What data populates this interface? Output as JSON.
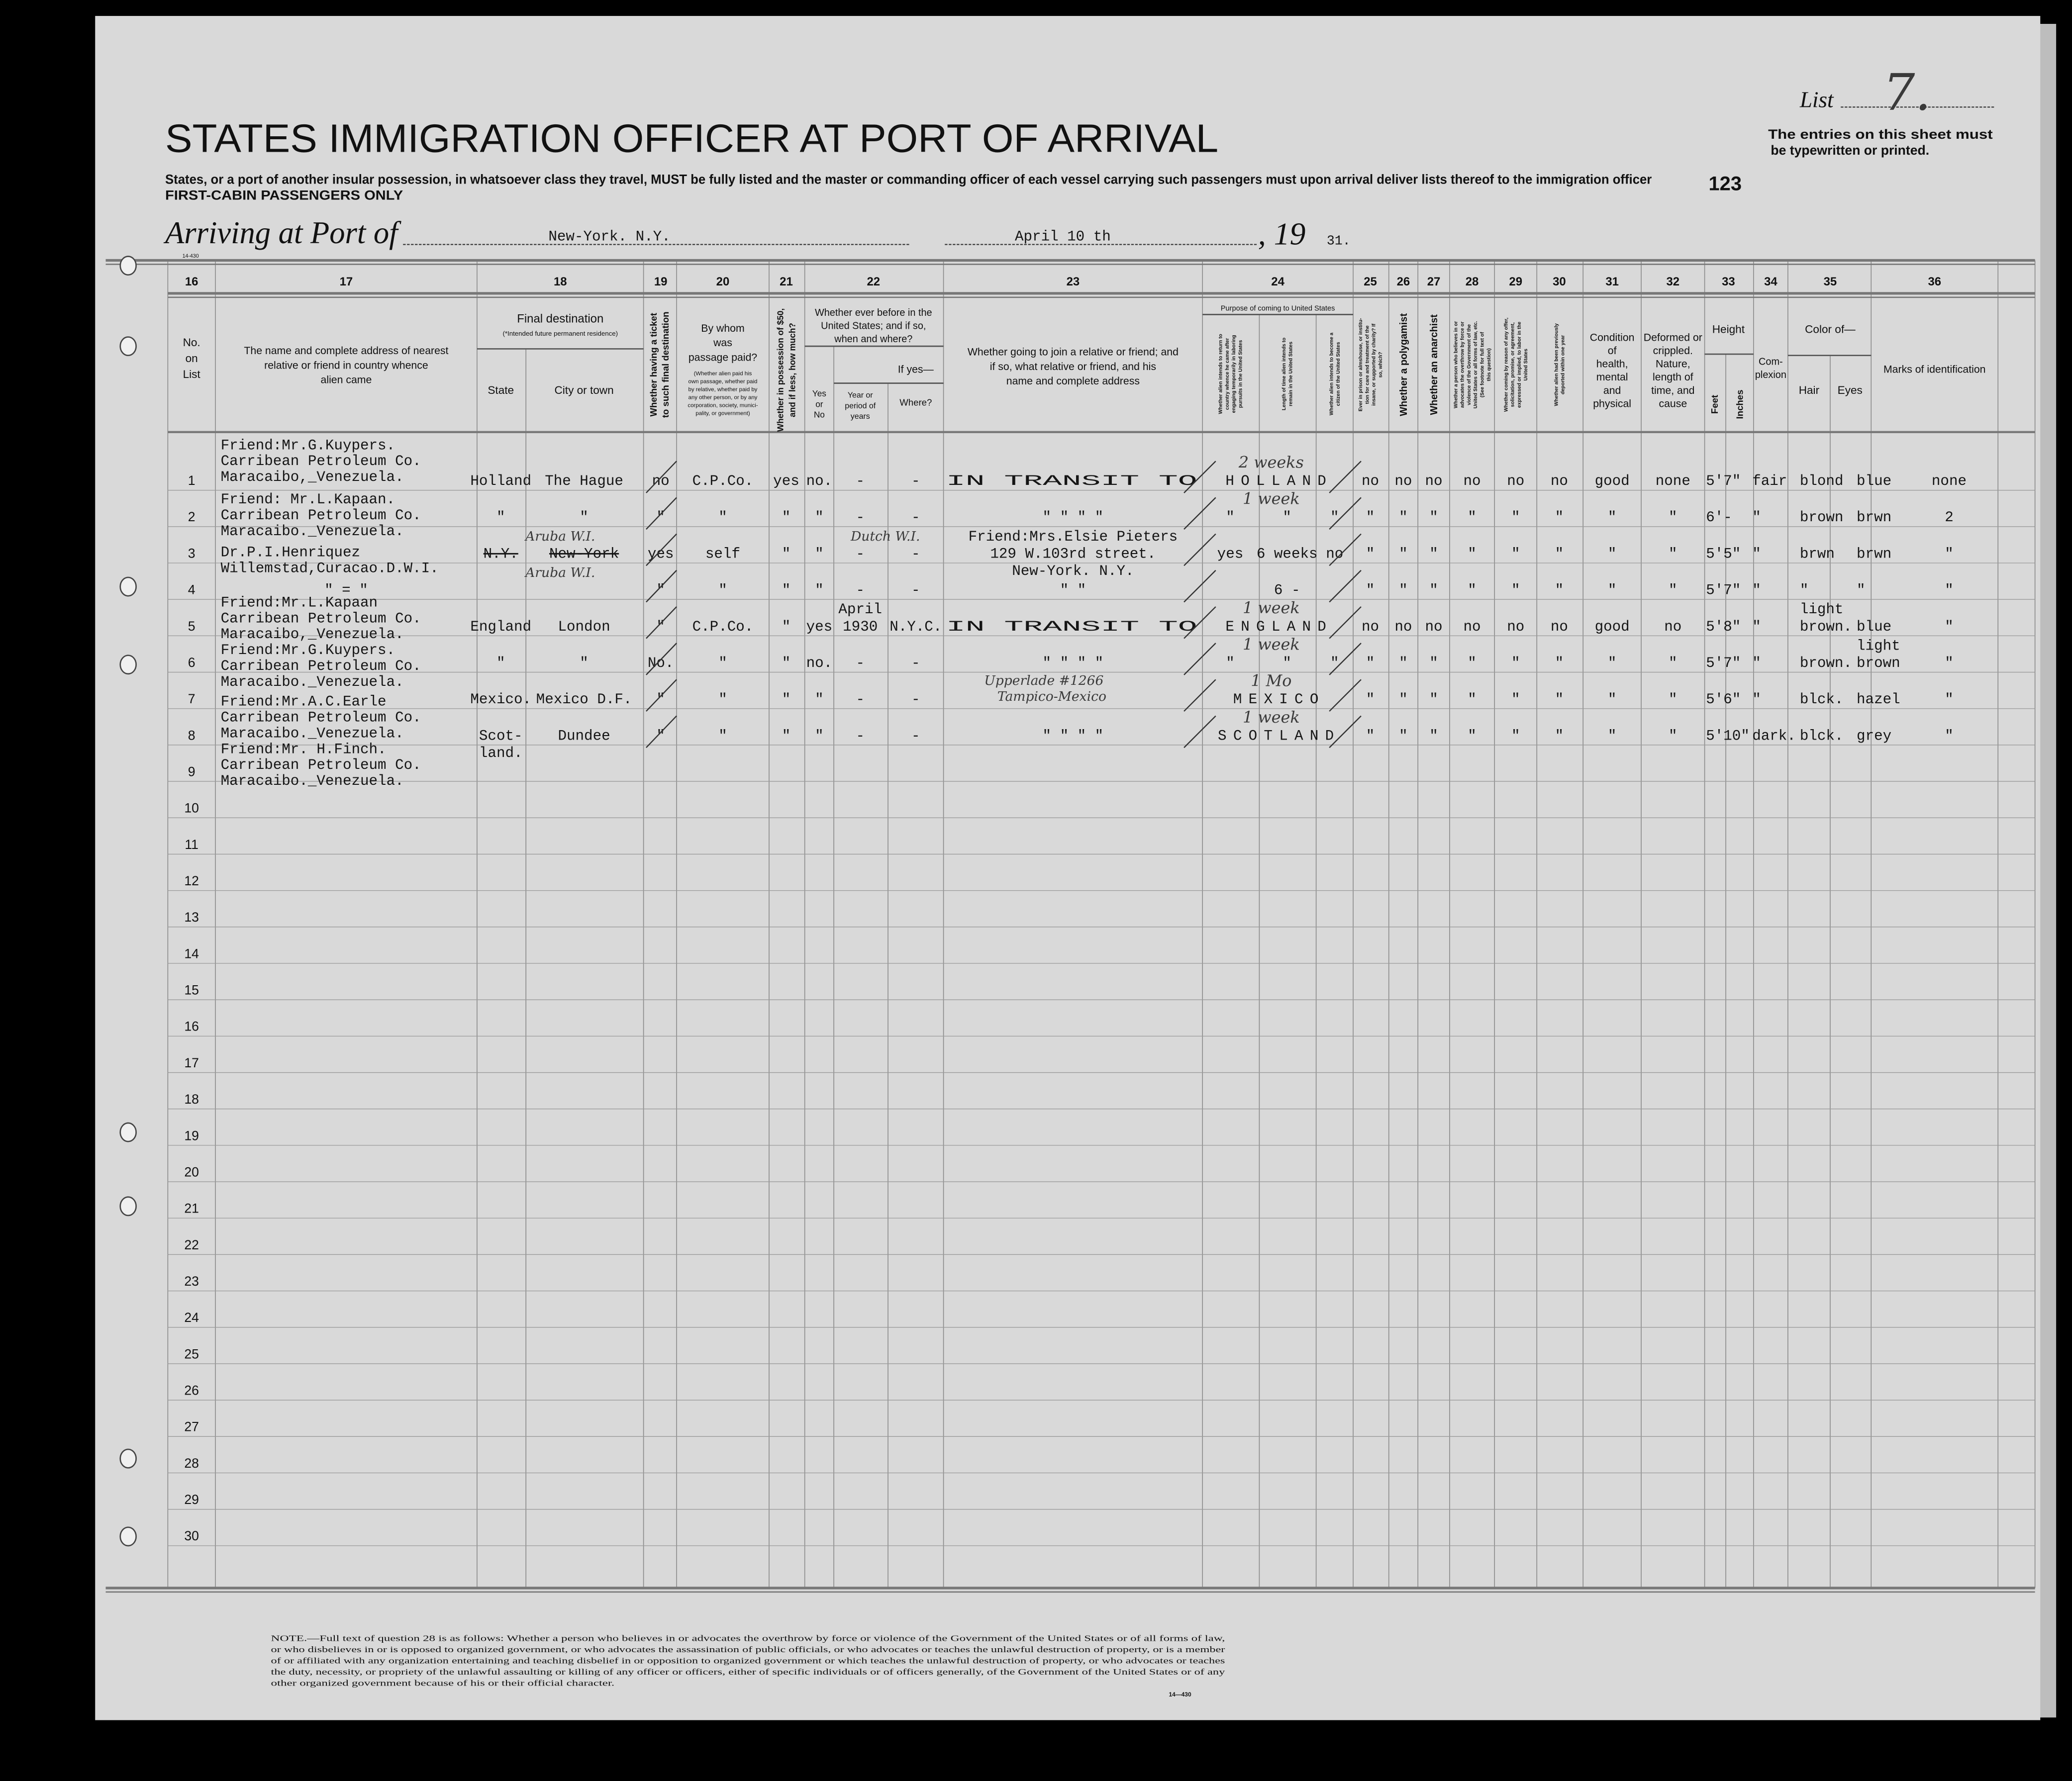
{
  "header": {
    "title": "STATES IMMIGRATION OFFICER AT PORT OF ARRIVAL",
    "instruction": "States, or a port of another insular possession, in whatsoever class they travel, MUST be fully listed and the master or commanding officer of each vessel carrying such passengers must upon arrival deliver lists thereof to the immigration officer",
    "class_label": "FIRST-CABIN PASSENGERS ONLY",
    "list_label": "List",
    "list_number": "7.",
    "entries_note_1": "The entries on this sheet must",
    "entries_note_2": "be typewritten or printed.",
    "sheet_number": "123",
    "arriving_label": "Arriving at Port of",
    "port": "New-York. N.Y.",
    "date": "April 10 th",
    "year_prefix": ", 19",
    "year_suffix": "31.",
    "form_code": "14-430"
  },
  "columns": {
    "numbers": [
      "16",
      "17",
      "18",
      "19",
      "20",
      "21",
      "22",
      "23",
      "24",
      "25",
      "26",
      "27",
      "28",
      "29",
      "30",
      "31",
      "32",
      "33",
      "34",
      "35",
      "36"
    ],
    "c16": [
      "No.",
      "on",
      "List"
    ],
    "c17": [
      "The name and complete address of nearest",
      "relative or friend in country whence",
      "alien came"
    ],
    "c18": {
      "title": "Final destination",
      "subtitle": "(*Intended future permanent residence)",
      "state": "State",
      "city": "City or town"
    },
    "c19": [
      "Whether having a ticket",
      "to such final destination"
    ],
    "c20": {
      "title": [
        "By whom",
        "was",
        "passage paid?"
      ],
      "note": [
        "(Whether alien paid his",
        "own passage, whether paid",
        "by relative, whether paid by",
        "any other person, or by any",
        "corporation, society, munici-",
        "pality, or government)"
      ]
    },
    "c21": [
      "Whether in possession of $50,",
      "and if less, how much?"
    ],
    "c22": {
      "title": [
        "Whether ever before in the",
        "United States; and if so,",
        "when and where?"
      ],
      "if_yes": "If yes—",
      "yes_no": [
        "Yes",
        "or",
        "No"
      ],
      "year": [
        "Year or",
        "period of",
        "years"
      ],
      "where": "Where?"
    },
    "c23": [
      "Whether going to join a relative or friend; and",
      "if so, what relative or friend, and his",
      "name and complete address"
    ],
    "c24": {
      "title": "Purpose of coming to United States",
      "return": [
        "Whether alien intends to return to",
        "country whence he came after",
        "engaging temporarily in laboring",
        "pursuits in the United States"
      ],
      "length": [
        "Length of time alien intends to",
        "remain in the United States"
      ],
      "citizen": [
        "Whether alien intends to become a",
        "citizen of the United States"
      ]
    },
    "c25": [
      "Ever in prison or almshouse, or institu-",
      "tion for care and treatment of the",
      "insane, or supported by charity? If",
      "so, which?"
    ],
    "c26": [
      "Whether a polygamist"
    ],
    "c27": [
      "Whether an anarchist"
    ],
    "c28": [
      "Whether a person who believes in or",
      "advocates the overthrow by force or",
      "violence of the Government of the",
      "United States or all forms of law, etc.",
      "(See footnote for full text of",
      "this question)"
    ],
    "c29": [
      "Whether coming by reason of any offer,",
      "solicitation, promise, or agreement,",
      "expressed or implied, to labor in the",
      "United States"
    ],
    "c30": [
      "Whether alien had been previously",
      "deported within one year"
    ],
    "c31": [
      "Condition",
      "of",
      "health,",
      "mental",
      "and",
      "physical"
    ],
    "c32": [
      "Deformed or",
      "crippled.",
      "Nature,",
      "length of",
      "time, and",
      "cause"
    ],
    "c33": {
      "title": "Height",
      "feet": "Feet",
      "inches": "Inches"
    },
    "c34": [
      "Com-",
      "plexion"
    ],
    "c35": {
      "title": "Color of—",
      "hair": "Hair",
      "eyes": "Eyes"
    },
    "c36": [
      "Marks of identification"
    ]
  },
  "row_numbers": [
    "1",
    "2",
    "3",
    "4",
    "5",
    "6",
    "7",
    "8",
    "9",
    "10",
    "11",
    "12",
    "13",
    "14",
    "15",
    "16",
    "17",
    "18",
    "19",
    "20",
    "21",
    "22",
    "23",
    "24",
    "25",
    "26",
    "27",
    "28",
    "29",
    "30"
  ],
  "addresses": [
    {
      "row": 1,
      "lines": [
        "Friend:Mr.G.Kuypers.",
        "Carribean Petroleum Co.",
        "Maracaibo,_Venezuela."
      ]
    },
    {
      "row": 2,
      "lines": [
        "Friend: Mr.L.Kapaan.",
        "Carribean Petroleum Co.",
        "Maracaibo._Venezuela."
      ]
    },
    {
      "row": 3,
      "lines": [
        "Dr.P.I.Henriquez",
        "Willemstad,Curacao.D.W.I."
      ]
    },
    {
      "row": 5,
      "lines": [
        "Friend:Mr.L.Kapaan",
        "Carribean Petroleum Co.",
        "Maracaibo,_Venezuela."
      ]
    },
    {
      "row": 6,
      "lines": [
        "Friend:Mr.G.Kuypers.",
        "Carribean Petroleum Co.",
        "Maracaibo._Venezuela."
      ]
    },
    {
      "row": 7,
      "lines": [
        "Friend:Mr.A.C.Earle",
        "Carribean Petroleum Co.",
        "Maracaibo._Venezuela."
      ]
    },
    {
      "row": 8,
      "lines": [
        "Friend:Mr. H.Finch.",
        "Carribean Petroleum Co.",
        "Maracaibo._Venezuela."
      ]
    }
  ],
  "rows": [
    {
      "state": "Holland",
      "city": "The Hague",
      "c19": "no",
      "c20": "C.P.Co.",
      "c21": "yes",
      "c22_yn": "no.",
      "c22_year": "-",
      "c22_where": "-",
      "transit": "IN TRANSIT TO",
      "c24_dest": "HOLLAND",
      "hand_c24": "2 weeks",
      "c25": "no",
      "c26": "no",
      "c27": "no",
      "c28": "no",
      "c29": "no",
      "c30": "no",
      "c31": "good",
      "c32": "none",
      "height": "5'7\"",
      "complexion": "fair",
      "hair": "blond",
      "eyes": "blue",
      "marks": "none"
    },
    {
      "state": "\"",
      "city": "\"",
      "c19": "\"",
      "c20": "\"",
      "c21": "\"",
      "c22_yn": "\"",
      "c22_year": "-",
      "c22_where": "-",
      "c23": "\"     \"    \"   \"",
      "hand_c24": "1 week",
      "c24_return": "\"",
      "c24_length": "\"",
      "c24_citizen": "\"",
      "c25": "\"",
      "c26": "\"",
      "c27": "\"",
      "c28": "\"",
      "c29": "\"",
      "c30": "\"",
      "c31": "\"",
      "c32": "\"",
      "height": "6'-",
      "complexion": "\"",
      "hair": "brown",
      "eyes": "brwn",
      "marks": "2"
    },
    {
      "state": "N.Y.",
      "city": "New-York",
      "struck": [
        "state",
        "city"
      ],
      "hand_state": "Aruba W.I.",
      "c19": "yes",
      "c20": "self",
      "c21": "\"",
      "c22_yn": "\"",
      "hand_c22": "Dutch W.I.",
      "c22_year": "-",
      "c22_where": "-",
      "c23": "Friend:Mrs.Elsie Pieters\n129 W.103rd street.\nNew-York. N.Y.",
      "c24_return": "yes",
      "c24_length": "6 weeks",
      "c24_citizen": "no",
      "c25": "\"",
      "c26": "\"",
      "c27": "\"",
      "c28": "\"",
      "c29": "\"",
      "c30": "\"",
      "c31": "\"",
      "c32": "\"",
      "height": "5'5\"",
      "complexion": "\"",
      "hair": "brwn",
      "eyes": "brwn",
      "marks": "\""
    },
    {
      "c17": "\"    =    \"",
      "hand_state": "Aruba W.I.",
      "c19": "\"",
      "c20": "\"",
      "c21": "\"",
      "c22_yn": "\"",
      "c22_year": "-",
      "c22_where": "-",
      "c23": "\"           \"",
      "c24_length": "6 -",
      "c25": "\"",
      "c26": "\"",
      "c27": "\"",
      "c28": "\"",
      "c29": "\"",
      "c30": "\"",
      "c31": "\"",
      "c32": "\"",
      "height": "5'7\"",
      "complexion": "\"",
      "hair": "\"",
      "eyes": "\"",
      "marks": "\""
    },
    {
      "state": "England",
      "city": "London",
      "c19": "\"",
      "c20": "C.P.Co.",
      "c21": "\"",
      "c22_yn": "yes",
      "c22_year": "April\n1930",
      "c22_where": "N.Y.C.",
      "transit": "IN TRANSIT TO",
      "c24_dest": "ENGLAND",
      "hand_c24": "1 week",
      "c25": "no",
      "c26": "no",
      "c27": "no",
      "c28": "no",
      "c29": "no",
      "c30": "no",
      "c31": "good",
      "c32": "no",
      "height": "5'8\"",
      "complexion": "\"",
      "hair": "light\nbrown.",
      "eyes": "blue",
      "marks": "\""
    },
    {
      "state": "\"",
      "city": "\"",
      "c19": "No.",
      "c20": "\"",
      "c21": "\"",
      "c22_yn": "no.",
      "c22_year": "-",
      "c22_where": "-",
      "c23": "\"     \"    \"   \"",
      "hand_c24": "1 week",
      "c24_return": "\"",
      "c24_length": "\"",
      "c24_citizen": "\"",
      "c25": "\"",
      "c26": "\"",
      "c27": "\"",
      "c28": "\"",
      "c29": "\"",
      "c30": "\"",
      "c31": "\"",
      "c32": "\"",
      "height": "5'7\"",
      "complexion": "\"",
      "hair": "brown.",
      "eyes": "light\nbrown",
      "marks": "\""
    },
    {
      "state": "Mexico.",
      "city": "Mexico D.F.",
      "c19": "\"",
      "c20": "\"",
      "c21": "\"",
      "c22_yn": "\"",
      "c22_year": "-",
      "c22_where": "-",
      "hand_c23": "Upperlade #1266\nTampico-Mexico",
      "c24_dest": "MEXICO",
      "hand_c24": "1 Mo",
      "c25": "\"",
      "c26": "\"",
      "c27": "\"",
      "c28": "\"",
      "c29": "\"",
      "c30": "\"",
      "c31": "\"",
      "c32": "\"",
      "height": "5'6\"",
      "complexion": "\"",
      "hair": "blck.",
      "eyes": "hazel",
      "marks": "\""
    },
    {
      "state": "Scot-\nland.",
      "city": "Dundee",
      "c19": "\"",
      "c20": "\"",
      "c21": "\"",
      "c22_yn": "\"",
      "c22_year": "-",
      "c22_where": "-",
      "c23": "\"     \"    \"   \"",
      "c24_dest": "SCOTLAND",
      "hand_c24": "1 week",
      "c25": "\"",
      "c26": "\"",
      "c27": "\"",
      "c28": "\"",
      "c29": "\"",
      "c30": "\"",
      "c31": "\"",
      "c32": "\"",
      "height": "5'10\"",
      "complexion": "dark.",
      "hair": "blck.",
      "eyes": "grey",
      "marks": "\""
    }
  ],
  "footer": {
    "note": [
      "NOTE.—Full text of question 28 is as follows: Whether a person who believes in or advocates the overthrow by force or violence of the Government of the United States or of all forms of law,",
      "or who disbelieves in or is opposed to organized government, or who advocates the assassination of public officials, or who advocates or teaches the unlawful destruction of property, or is a member",
      "of or affiliated with any organization entertaining and teaching disbelief in or opposition to organized government or which teaches the unlawful destruction of property, or who advocates or teaches",
      "the duty, necessity, or propriety of the unlawful assaulting or killing of any officer or officers, either of specific individuals or of officers generally, of the Government of the United States or of any",
      "other organized government because of his or their official character."
    ],
    "form_code": "14—430"
  },
  "colors": {
    "paper": "#d9d9d9",
    "ink": "#111111",
    "rule": "#8a8a8a",
    "background": "#000000"
  }
}
